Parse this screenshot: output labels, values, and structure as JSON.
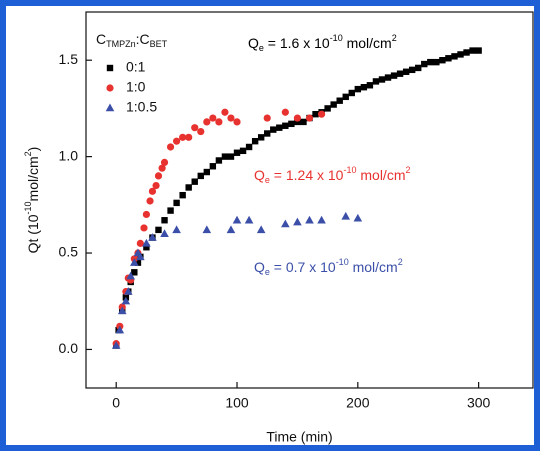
{
  "chart_data": {
    "type": "scatter",
    "xlabel": "Time (min)",
    "ylabel": {
      "parts": [
        {
          "text": "Qt (10"
        },
        {
          "text": "-10",
          "shift": "super"
        },
        {
          "text": "mol/cm"
        },
        {
          "text": "2",
          "shift": "super"
        },
        {
          "text": ")"
        }
      ]
    },
    "legend_title": {
      "parts": [
        {
          "text": "C"
        },
        {
          "text": "TMPZn",
          "shift": "sub"
        },
        {
          "text": ":C"
        },
        {
          "text": "BET",
          "shift": "sub"
        }
      ]
    },
    "xlim": [
      -25,
      345
    ],
    "xticks": [
      0,
      100,
      200,
      300
    ],
    "ylim": [
      -0.2,
      1.75
    ],
    "yticks": [
      {
        "value": 0,
        "label": "0.0"
      },
      {
        "value": 0.5,
        "label": "0.5"
      },
      {
        "value": 1,
        "label": "1.0"
      },
      {
        "value": 1.5,
        "label": "1.5"
      }
    ],
    "series": [
      {
        "name": "0:1",
        "color": "#000000",
        "marker": "square",
        "x": [
          0,
          2,
          5,
          8,
          10,
          12,
          15,
          18,
          20,
          25,
          30,
          35,
          40,
          45,
          50,
          55,
          60,
          65,
          70,
          75,
          80,
          85,
          90,
          95,
          100,
          105,
          110,
          115,
          120,
          125,
          130,
          135,
          140,
          145,
          150,
          155,
          160,
          165,
          170,
          175,
          180,
          185,
          190,
          195,
          200,
          205,
          210,
          215,
          220,
          225,
          230,
          235,
          240,
          245,
          250,
          255,
          260,
          265,
          270,
          275,
          280,
          285,
          290,
          295,
          300
        ],
        "values": [
          0.02,
          0.1,
          0.2,
          0.27,
          0.3,
          0.35,
          0.4,
          0.45,
          0.48,
          0.53,
          0.58,
          0.62,
          0.67,
          0.72,
          0.76,
          0.8,
          0.84,
          0.87,
          0.9,
          0.92,
          0.95,
          0.98,
          1.0,
          1.0,
          1.02,
          1.03,
          1.05,
          1.08,
          1.1,
          1.12,
          1.14,
          1.15,
          1.16,
          1.17,
          1.18,
          1.18,
          1.2,
          1.22,
          1.23,
          1.25,
          1.27,
          1.29,
          1.31,
          1.33,
          1.35,
          1.36,
          1.37,
          1.39,
          1.4,
          1.41,
          1.42,
          1.43,
          1.44,
          1.45,
          1.46,
          1.48,
          1.49,
          1.49,
          1.5,
          1.51,
          1.52,
          1.53,
          1.54,
          1.55,
          1.55
        ]
      },
      {
        "name": "1:0",
        "color": "#e8322f",
        "marker": "circle",
        "x": [
          0,
          3,
          5,
          8,
          10,
          12,
          15,
          18,
          20,
          23,
          25,
          28,
          30,
          33,
          35,
          38,
          40,
          45,
          50,
          55,
          60,
          65,
          70,
          75,
          80,
          85,
          90,
          95,
          100,
          125,
          140,
          150,
          160,
          170
        ],
        "values": [
          0.03,
          0.12,
          0.22,
          0.3,
          0.37,
          0.36,
          0.47,
          0.5,
          0.55,
          0.63,
          0.7,
          0.77,
          0.82,
          0.85,
          0.9,
          0.94,
          0.97,
          1.05,
          1.08,
          1.1,
          1.1,
          1.15,
          1.13,
          1.18,
          1.2,
          1.18,
          1.23,
          1.2,
          1.18,
          1.2,
          1.23,
          1.2,
          1.2,
          1.22
        ]
      },
      {
        "name": "1:0.5",
        "color": "#3b4fa8",
        "marker": "triangle",
        "x": [
          0,
          3,
          5,
          8,
          10,
          12,
          15,
          18,
          20,
          25,
          30,
          40,
          50,
          75,
          95,
          100,
          110,
          120,
          140,
          150,
          160,
          170,
          190,
          200
        ],
        "values": [
          0.02,
          0.1,
          0.2,
          0.25,
          0.3,
          0.38,
          0.45,
          0.5,
          0.48,
          0.55,
          0.58,
          0.6,
          0.62,
          0.62,
          0.62,
          0.67,
          0.67,
          0.62,
          0.65,
          0.66,
          0.67,
          0.67,
          0.69,
          0.68
        ]
      }
    ],
    "annotations": [
      {
        "color": "#000000",
        "parts": [
          {
            "text": "Q"
          },
          {
            "text": "e",
            "shift": "sub"
          },
          {
            "text": " = 1.6 x 10"
          },
          {
            "text": "-10",
            "shift": "super"
          },
          {
            "text": " mol/cm"
          },
          {
            "text": "2",
            "shift": "super"
          }
        ]
      },
      {
        "color": "#e8322f",
        "parts": [
          {
            "text": "Q"
          },
          {
            "text": "e",
            "shift": "sub"
          },
          {
            "text": " = 1.24 x 10"
          },
          {
            "text": "-10",
            "shift": "super"
          },
          {
            "text": " mol/cm"
          },
          {
            "text": "2",
            "shift": "super"
          }
        ]
      },
      {
        "color": "#3b4fa8",
        "parts": [
          {
            "text": "Q"
          },
          {
            "text": "e",
            "shift": "sub"
          },
          {
            "text": " = 0.7 x 10"
          },
          {
            "text": "-10",
            "shift": "super"
          },
          {
            "text": " mol/cm"
          },
          {
            "text": "2",
            "shift": "super"
          }
        ]
      }
    ]
  }
}
